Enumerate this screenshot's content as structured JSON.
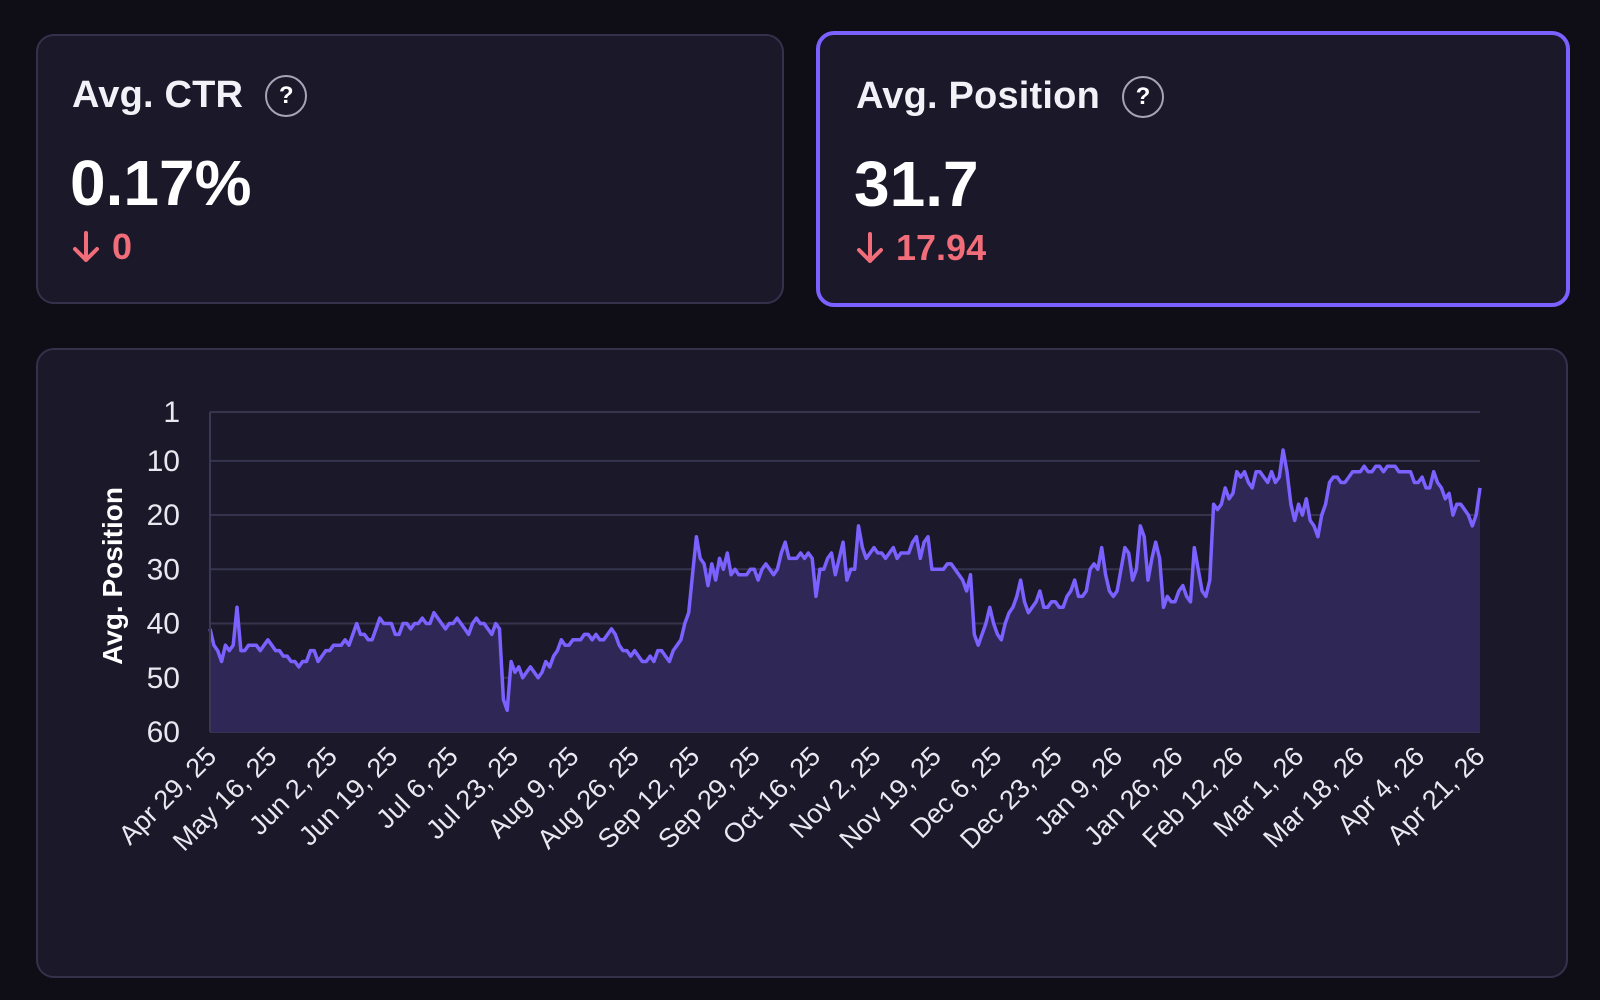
{
  "cards": [
    {
      "id": "ctr",
      "title": "Avg. CTR",
      "value": "0.17%",
      "change": "0",
      "change_direction": "down",
      "selected": false
    },
    {
      "id": "position",
      "title": "Avg. Position",
      "value": "31.7",
      "change": "17.94",
      "change_direction": "down",
      "selected": true
    }
  ],
  "help_glyph": "?",
  "colors": {
    "accent": "#7b61ff",
    "negative": "#f26d7a",
    "card_bg": "#1a1829",
    "page_bg": "#0f0e17"
  },
  "chart_data": {
    "type": "area",
    "ylabel": "Avg. Position",
    "xlabel": "",
    "y_reversed": true,
    "ylim": [
      1,
      60
    ],
    "yticks": [
      1,
      10,
      20,
      30,
      40,
      50,
      60
    ],
    "grid": true,
    "x_ticks": [
      "Apr 29, 25",
      "May 16, 25",
      "Jun 2, 25",
      "Jun 19, 25",
      "Jul 6, 25",
      "Jul 23, 25",
      "Aug 9, 25",
      "Aug 26, 25",
      "Sep 12, 25",
      "Sep 29, 25",
      "Oct 16, 25",
      "Nov 2, 25",
      "Nov 19, 25",
      "Dec 6, 25",
      "Dec 23, 25",
      "Jan 9, 26",
      "Jan 26, 26",
      "Feb 12, 26",
      "Mar 1, 26",
      "Mar 18, 26",
      "Apr 4, 26",
      "Apr 21, 26"
    ],
    "series": [
      {
        "x_start": "Apr 29, 25",
        "x_end": "Apr 28, 26",
        "values": [
          41,
          44,
          45,
          47,
          44,
          45,
          44,
          37,
          45,
          45,
          44,
          44,
          44,
          45,
          44,
          43,
          44,
          45,
          45,
          46,
          46,
          47,
          47,
          48,
          47,
          47,
          45,
          45,
          47,
          46,
          45,
          45,
          44,
          44,
          44,
          43,
          44,
          42,
          40,
          42,
          42,
          43,
          43,
          41,
          39,
          40,
          40,
          40,
          42,
          42,
          40,
          40,
          41,
          40,
          40,
          39,
          40,
          40,
          38,
          39,
          40,
          41,
          40,
          40,
          39,
          40,
          41,
          42,
          40,
          39,
          40,
          40,
          41,
          42,
          40,
          41,
          54,
          56,
          47,
          49,
          48,
          50,
          49,
          48,
          49,
          50,
          49,
          47,
          48,
          46,
          45,
          43,
          44,
          44,
          43,
          43,
          43,
          42,
          42,
          43,
          42,
          43,
          43,
          42,
          41,
          42,
          44,
          45,
          45,
          46,
          45,
          46,
          47,
          47,
          46,
          47,
          45,
          45,
          46,
          47,
          45,
          44,
          43,
          40,
          38,
          31,
          24,
          28,
          29,
          33,
          29,
          32,
          28,
          30,
          27,
          31,
          30,
          31,
          31,
          31,
          30,
          30,
          32,
          30,
          29,
          30,
          31,
          30,
          27,
          25,
          28,
          28,
          28,
          27,
          28,
          27,
          28,
          35,
          30,
          30,
          28,
          27,
          31,
          28,
          25,
          32,
          30,
          30,
          22,
          26,
          28,
          27,
          26,
          27,
          27,
          28,
          27,
          26,
          28,
          27,
          27,
          27,
          25,
          24,
          28,
          25,
          24,
          30,
          30,
          30,
          30,
          29,
          29,
          30,
          31,
          32,
          34,
          31,
          42,
          44,
          42,
          40,
          37,
          40,
          42,
          43,
          40,
          38,
          37,
          35,
          32,
          36,
          38,
          37,
          36,
          34,
          37,
          37,
          36,
          36,
          37,
          37,
          35,
          34,
          32,
          35,
          35,
          34,
          30,
          29,
          30,
          26,
          31,
          34,
          35,
          34,
          30,
          26,
          27,
          32,
          30,
          22,
          24,
          32,
          28,
          25,
          28,
          37,
          35,
          36,
          36,
          34,
          33,
          35,
          36,
          26,
          30,
          34,
          35,
          32,
          18,
          19,
          18,
          15,
          17,
          16,
          12,
          13,
          12,
          14,
          15,
          12,
          12,
          13,
          14,
          12,
          14,
          13,
          8,
          12,
          18,
          21,
          18,
          20,
          17,
          21,
          22,
          24,
          20,
          18,
          14,
          13,
          13,
          14,
          14,
          13,
          12,
          12,
          12,
          11,
          12,
          12,
          11,
          11,
          12,
          11,
          11,
          11,
          12,
          12,
          12,
          12,
          14,
          14,
          13,
          15,
          15,
          12,
          14,
          15,
          17,
          16,
          20,
          18,
          18,
          19,
          20,
          22,
          20,
          15
        ]
      }
    ]
  }
}
